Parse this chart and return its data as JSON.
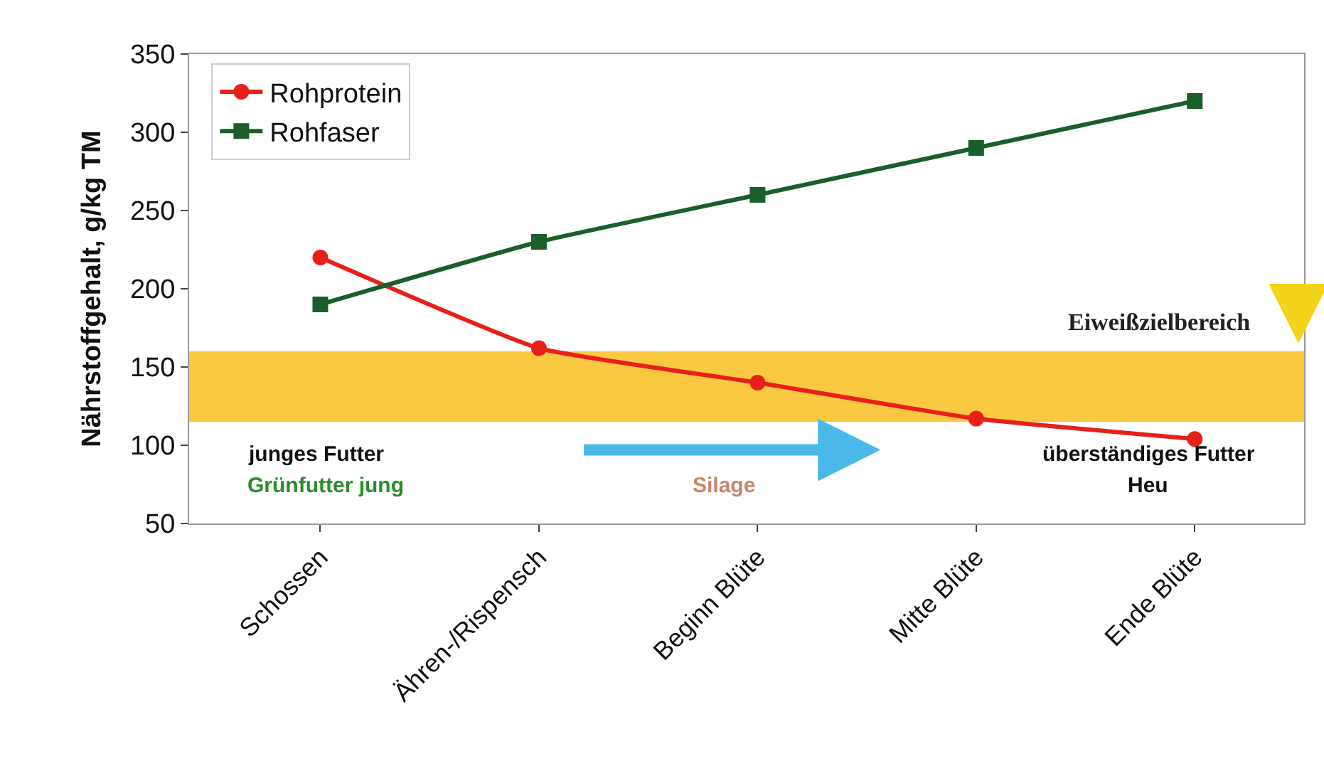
{
  "chart_data": {
    "type": "line",
    "ylabel": "Nährstoffgehalt, g/kg TM",
    "categories": [
      "Schossen",
      "Ähren-/Rispensch",
      "Beginn Blüte",
      "Mitte Blüte",
      "Ende Blüte"
    ],
    "series": [
      {
        "name": "Rohprotein",
        "color": "#e8201a",
        "values": [
          220,
          162,
          140,
          117,
          104
        ],
        "marker": "circle"
      },
      {
        "name": "Rohfaser",
        "color": "#1a5e2a",
        "values": [
          190,
          230,
          260,
          290,
          320
        ],
        "marker": "square"
      }
    ],
    "ylim": [
      50,
      350
    ],
    "yticks": [
      50,
      100,
      150,
      200,
      250,
      300,
      350
    ],
    "bands": [
      {
        "axis": "y",
        "from": 115,
        "to": 160,
        "label": "Eiweißzielbereich",
        "color": "#f9c020"
      }
    ],
    "annotations": [
      "junges Futter",
      "Grünfutter jung",
      "Silage",
      "überständiges Futter",
      "Heu"
    ],
    "legend": "top left",
    "grid": false
  }
}
